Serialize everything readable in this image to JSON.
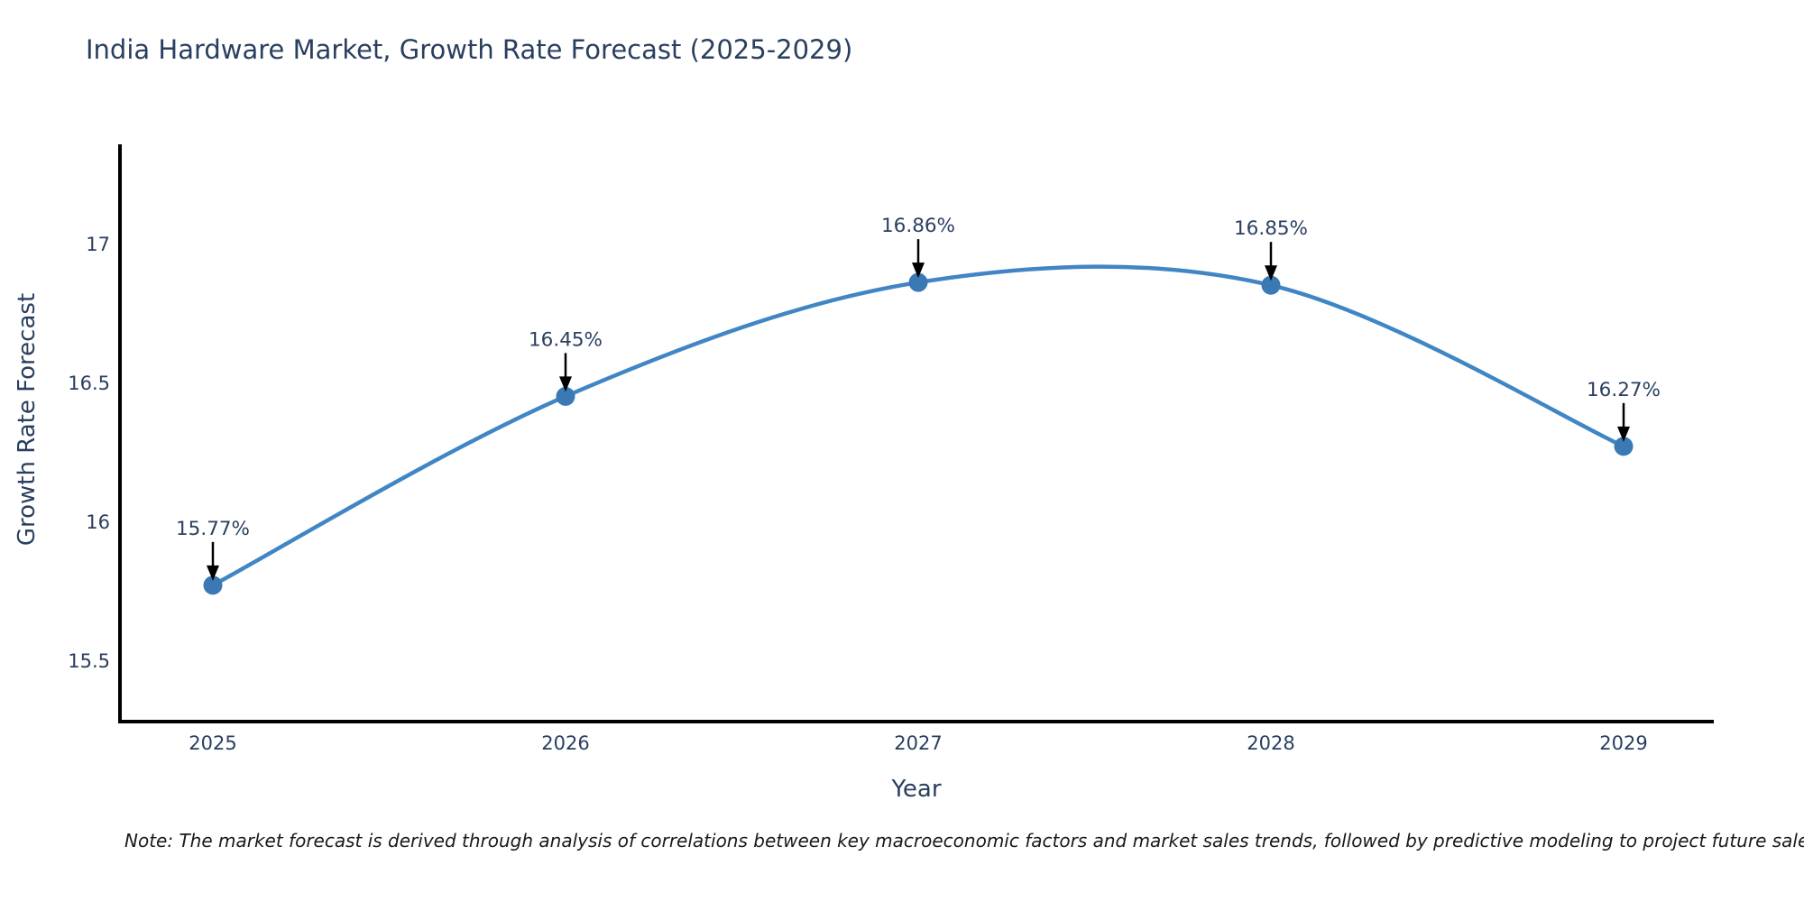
{
  "chart_data": {
    "type": "line",
    "title": "India Hardware Market, Growth Rate Forecast (2025-2029)",
    "xlabel": "Year",
    "ylabel": "Growth Rate Forecast",
    "x": [
      2025,
      2026,
      2027,
      2028,
      2029
    ],
    "values": [
      15.77,
      16.45,
      16.86,
      16.85,
      16.27
    ],
    "point_labels": [
      "15.77%",
      "16.45%",
      "16.86%",
      "16.85%",
      "16.27%"
    ],
    "x_tick_labels": [
      "2025",
      "2026",
      "2027",
      "2028",
      "2029"
    ],
    "y_ticks": [
      17,
      16.5,
      16,
      15.5
    ],
    "y_tick_labels": [
      "17",
      "16.5",
      "16",
      "15.5"
    ],
    "ylim": [
      15.28,
      17.36
    ],
    "grid": false,
    "legend": "none",
    "line_shape": "spline",
    "colors": {
      "line": "#4186c4",
      "marker": "#3b79b5",
      "axis": "#000000",
      "text": "#2a3f5f",
      "annotation_arrow": "#000000"
    }
  },
  "note": "Note: The market forecast is derived through analysis of correlations between key macroeconomic factors and market sales trends, followed by predictive modeling to project future sales."
}
